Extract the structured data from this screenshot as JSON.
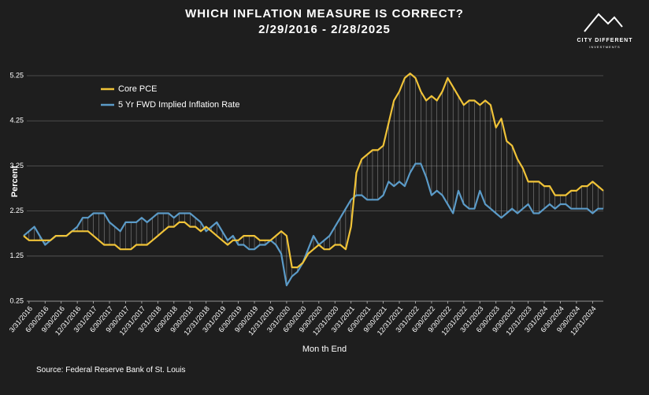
{
  "chart_data": {
    "type": "line",
    "title": "WHICH INFLATION MEASURE IS CORRECT?",
    "subtitle": "2/29/2016 - 2/28/2025",
    "logo_name": "CITY DIFFERENT",
    "logo_sub": "INVESTMENTS",
    "x_label": "Mon th End",
    "y_label": "Percent",
    "source": "Source: Federal Reserve Bank of St. Louis",
    "categories": [
      null,
      "3/31/2016",
      null,
      null,
      "6/30/2016",
      null,
      null,
      "9/30/2016",
      null,
      null,
      "12/31/2016",
      null,
      null,
      "3/31/2017",
      null,
      null,
      "6/30/2017",
      null,
      null,
      "9/30/2017",
      null,
      null,
      "12/31/2017",
      null,
      null,
      "3/31/2018",
      null,
      null,
      "6/30/2018",
      null,
      null,
      "9/30/2018",
      null,
      null,
      "12/31/2018",
      null,
      null,
      "3/31/2019",
      null,
      null,
      "6/30/2019",
      null,
      null,
      "9/30/2019",
      null,
      null,
      "12/31/2019",
      null,
      null,
      "3/31/2020",
      null,
      null,
      "6/30/2020",
      null,
      null,
      "9/30/2020",
      null,
      null,
      "12/31/2020",
      null,
      null,
      "3/31/2021",
      null,
      null,
      "6/30/2021",
      null,
      null,
      "9/30/2021",
      null,
      null,
      "12/31/2021",
      null,
      null,
      "3/31/2022",
      null,
      null,
      "6/30/2022",
      null,
      null,
      "9/30/2022",
      null,
      null,
      "12/31/2022",
      null,
      null,
      "3/31/2023",
      null,
      null,
      "6/30/2023",
      null,
      null,
      "9/30/2023",
      null,
      null,
      "12/31/2023",
      null,
      null,
      "3/31/2024",
      null,
      null,
      "6/30/2024",
      null,
      null,
      "9/30/2024",
      null,
      null,
      "12/31/2024",
      null,
      null
    ],
    "series": [
      {
        "name": "Core PCE",
        "color": "#f0c338",
        "values": [
          1.7,
          1.6,
          1.6,
          1.6,
          1.6,
          1.6,
          1.7,
          1.7,
          1.7,
          1.8,
          1.8,
          1.8,
          1.8,
          1.7,
          1.6,
          1.5,
          1.5,
          1.5,
          1.4,
          1.4,
          1.4,
          1.5,
          1.5,
          1.5,
          1.6,
          1.7,
          1.8,
          1.9,
          1.9,
          2.0,
          2.0,
          1.9,
          1.9,
          1.8,
          1.9,
          1.8,
          1.7,
          1.6,
          1.5,
          1.6,
          1.6,
          1.7,
          1.7,
          1.7,
          1.6,
          1.6,
          1.6,
          1.7,
          1.8,
          1.7,
          1.0,
          1.0,
          1.1,
          1.3,
          1.4,
          1.5,
          1.4,
          1.4,
          1.5,
          1.5,
          1.4,
          1.9,
          3.1,
          3.4,
          3.5,
          3.6,
          3.6,
          3.7,
          4.2,
          4.7,
          4.9,
          5.2,
          5.3,
          5.2,
          4.9,
          4.7,
          4.8,
          4.7,
          4.9,
          5.2,
          5.0,
          4.8,
          4.6,
          4.7,
          4.7,
          4.6,
          4.7,
          4.6,
          4.1,
          4.3,
          3.8,
          3.7,
          3.4,
          3.2,
          2.9,
          2.9,
          2.9,
          2.8,
          2.8,
          2.6,
          2.6,
          2.6,
          2.7,
          2.7,
          2.8,
          2.8,
          2.9,
          2.8,
          2.7
        ]
      },
      {
        "name": "5 Yr FWD Implied Inflation Rate",
        "color": "#5b9bc8",
        "values": [
          1.7,
          1.8,
          1.9,
          1.7,
          1.5,
          1.6,
          1.7,
          1.7,
          1.7,
          1.8,
          1.9,
          2.1,
          2.1,
          2.2,
          2.2,
          2.2,
          2.0,
          1.9,
          1.8,
          2.0,
          2.0,
          2.0,
          2.1,
          2.0,
          2.1,
          2.2,
          2.2,
          2.2,
          2.1,
          2.2,
          2.2,
          2.2,
          2.1,
          2.0,
          1.8,
          1.9,
          2.0,
          1.8,
          1.6,
          1.7,
          1.5,
          1.5,
          1.4,
          1.4,
          1.5,
          1.5,
          1.6,
          1.5,
          1.3,
          0.6,
          0.8,
          0.9,
          1.1,
          1.4,
          1.7,
          1.5,
          1.6,
          1.7,
          1.9,
          2.1,
          2.3,
          2.5,
          2.6,
          2.6,
          2.5,
          2.5,
          2.5,
          2.6,
          2.9,
          2.8,
          2.9,
          2.8,
          3.1,
          3.3,
          3.3,
          3.0,
          2.6,
          2.7,
          2.6,
          2.4,
          2.2,
          2.7,
          2.4,
          2.3,
          2.3,
          2.7,
          2.4,
          2.3,
          2.2,
          2.1,
          2.2,
          2.3,
          2.2,
          2.3,
          2.4,
          2.2,
          2.2,
          2.3,
          2.4,
          2.3,
          2.4,
          2.4,
          2.3,
          2.3,
          2.3,
          2.3,
          2.2,
          2.3,
          2.3
        ]
      }
    ],
    "ylim": [
      0.25,
      5.6
    ],
    "yticks": [
      0.25,
      1.25,
      2.25,
      3.25,
      4.25,
      5.25
    ],
    "grid": true,
    "legend": "upper left"
  }
}
